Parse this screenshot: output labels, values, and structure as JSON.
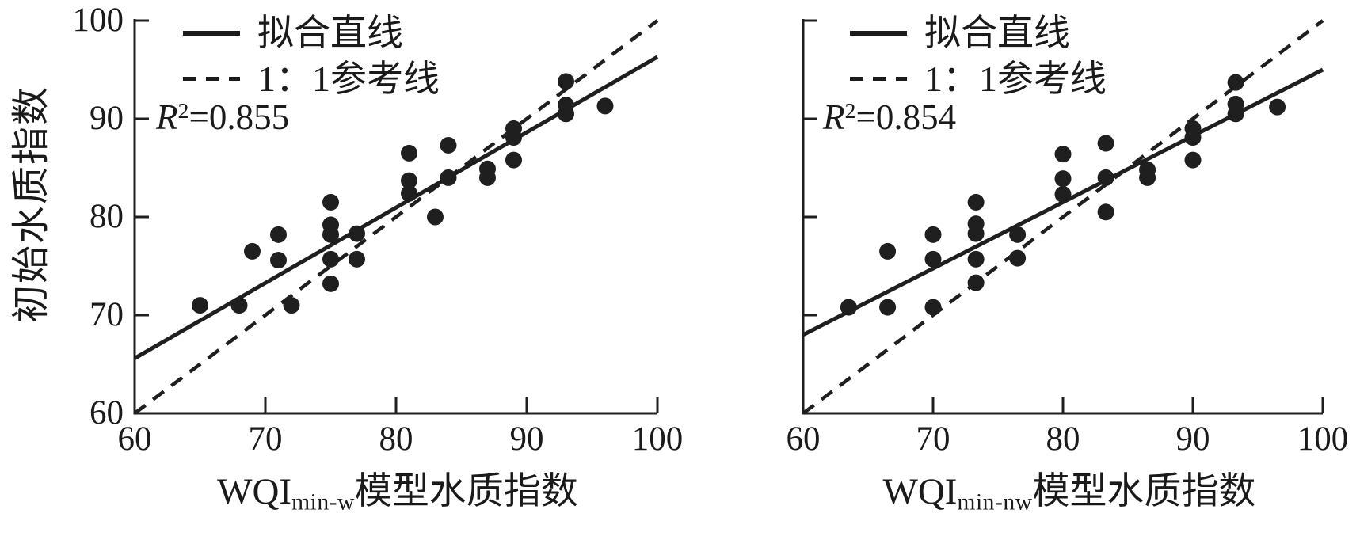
{
  "figure": {
    "background": "#ffffff",
    "ink_color": "#1f1f1f"
  },
  "chart_data": [
    {
      "type": "scatter",
      "panel": "left",
      "xlabel": {
        "prefix": "WQI",
        "subscript": "min-w",
        "suffix": "模型水质指数"
      },
      "ylabel": "初始水质指数",
      "xlim": [
        60,
        100
      ],
      "ylim": [
        60,
        100
      ],
      "x_ticks": [
        60,
        70,
        80,
        90,
        100
      ],
      "y_ticks": [
        60,
        70,
        80,
        90,
        100
      ],
      "y_tick_labels_visible": true,
      "grid": false,
      "legend_position": "top-left",
      "legend": {
        "fit_label": "拟合直线",
        "ref_label": "1：1参考线"
      },
      "r2": {
        "symbol": "R",
        "exponent": "2",
        "value": "=0.855"
      },
      "fit_line": {
        "x": [
          60,
          100
        ],
        "y": [
          65.6,
          96.3
        ]
      },
      "ref_line": {
        "x": [
          60,
          100
        ],
        "y": [
          60,
          100
        ]
      },
      "points": [
        [
          65,
          71
        ],
        [
          68,
          71
        ],
        [
          69,
          76.5
        ],
        [
          71,
          78.2
        ],
        [
          71,
          75.6
        ],
        [
          72,
          71
        ],
        [
          75,
          81.5
        ],
        [
          75,
          79.2
        ],
        [
          75,
          78.2
        ],
        [
          75,
          75.7
        ],
        [
          75,
          73.2
        ],
        [
          77,
          78.3
        ],
        [
          77,
          75.7
        ],
        [
          81,
          86.5
        ],
        [
          81,
          83.7
        ],
        [
          81,
          82.4
        ],
        [
          83,
          80
        ],
        [
          84,
          87.3
        ],
        [
          84,
          84
        ],
        [
          87,
          84.9
        ],
        [
          87,
          84
        ],
        [
          89,
          89
        ],
        [
          89,
          88.1
        ],
        [
          89,
          85.8
        ],
        [
          93,
          93.8
        ],
        [
          93,
          91.4
        ],
        [
          93,
          90.5
        ],
        [
          96,
          91.3
        ]
      ]
    },
    {
      "type": "scatter",
      "panel": "right",
      "xlabel": {
        "prefix": "WQI",
        "subscript": "min-nw",
        "suffix": "模型水质指数"
      },
      "ylabel": "",
      "xlim": [
        60,
        100
      ],
      "ylim": [
        60,
        100
      ],
      "x_ticks": [
        60,
        70,
        80,
        90,
        100
      ],
      "y_ticks": [
        60,
        70,
        80,
        90,
        100
      ],
      "y_tick_labels_visible": false,
      "grid": false,
      "legend_position": "top-left",
      "legend": {
        "fit_label": "拟合直线",
        "ref_label": "1：1参考线"
      },
      "r2": {
        "symbol": "R",
        "exponent": "2",
        "value": "=0.854"
      },
      "fit_line": {
        "x": [
          60,
          100
        ],
        "y": [
          68.0,
          95.0
        ]
      },
      "ref_line": {
        "x": [
          60,
          100
        ],
        "y": [
          60,
          100
        ]
      },
      "points": [
        [
          63.5,
          70.8
        ],
        [
          66.5,
          70.8
        ],
        [
          66.5,
          76.5
        ],
        [
          70,
          78.2
        ],
        [
          70,
          75.7
        ],
        [
          70,
          70.8
        ],
        [
          73.3,
          81.5
        ],
        [
          73.3,
          79.3
        ],
        [
          73.3,
          78.3
        ],
        [
          73.3,
          75.7
        ],
        [
          73.3,
          73.3
        ],
        [
          76.5,
          78.2
        ],
        [
          76.5,
          75.8
        ],
        [
          80,
          86.4
        ],
        [
          80,
          83.9
        ],
        [
          80,
          82.3
        ],
        [
          83.3,
          87.5
        ],
        [
          83.3,
          84
        ],
        [
          83.3,
          80.5
        ],
        [
          86.5,
          84.8
        ],
        [
          86.5,
          84
        ],
        [
          90,
          89
        ],
        [
          90,
          88.1
        ],
        [
          90,
          85.8
        ],
        [
          93.3,
          93.7
        ],
        [
          93.3,
          91.5
        ],
        [
          93.3,
          90.5
        ],
        [
          96.5,
          91.2
        ]
      ]
    }
  ]
}
